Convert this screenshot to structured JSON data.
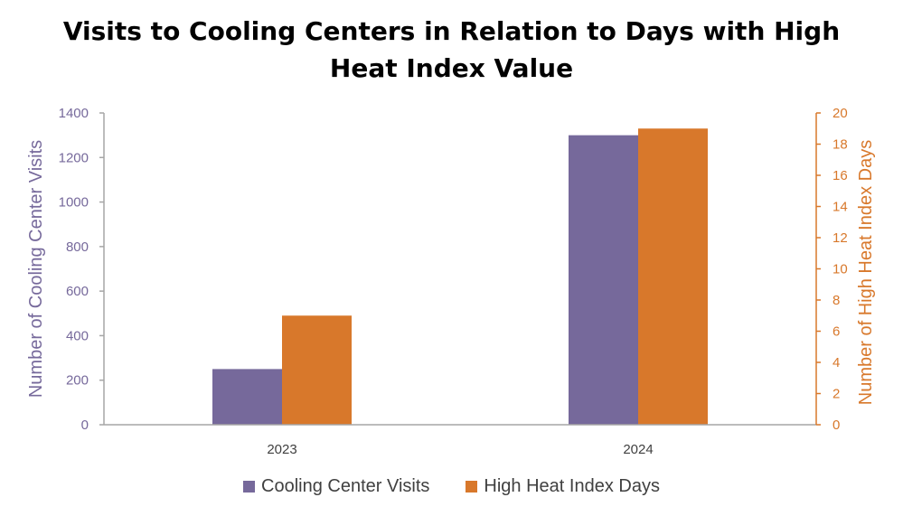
{
  "chart_data": {
    "type": "bar",
    "title_line1": "Visits to Cooling Centers in Relation to Days with High",
    "title_line2": "Heat Index Value",
    "categories": [
      "2023",
      "2024"
    ],
    "series": [
      {
        "name": "Cooling Center Visits",
        "axis": "left",
        "values": [
          250,
          1300
        ],
        "color": "#76699B"
      },
      {
        "name": "High Heat Index Days",
        "axis": "right",
        "values": [
          7,
          19
        ],
        "color": "#D8782B"
      }
    ],
    "y_left": {
      "label": "Number of Cooling Center Visits",
      "ylim": [
        0,
        1400
      ],
      "ticks": [
        "0",
        "200",
        "400",
        "600",
        "800",
        "1000",
        "1200",
        "1400"
      ],
      "color": "#76699B"
    },
    "y_right": {
      "label": "Number of High Heat Index Days",
      "ylim": [
        0,
        20
      ],
      "ticks": [
        "0",
        "2",
        "4",
        "6",
        "8",
        "10",
        "12",
        "14",
        "16",
        "18",
        "20"
      ],
      "color": "#D8782B"
    },
    "grid": false,
    "legend_position": "bottom"
  }
}
